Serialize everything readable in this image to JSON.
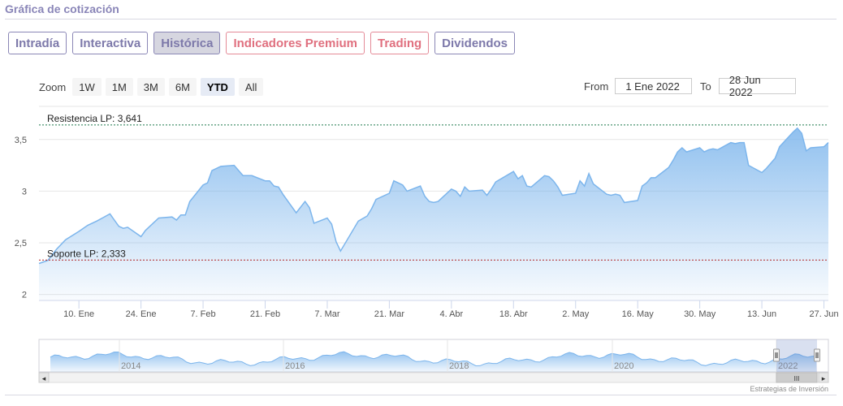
{
  "page": {
    "title": "Gráfica de cotización",
    "credit": "Estrategias de Inversión"
  },
  "tabs": [
    {
      "label": "Intradía",
      "style": "normal"
    },
    {
      "label": "Interactiva",
      "style": "normal"
    },
    {
      "label": "Histórica",
      "style": "active"
    },
    {
      "label": "Indicadores Premium",
      "style": "premium"
    },
    {
      "label": "Trading",
      "style": "premium"
    },
    {
      "label": "Dividendos",
      "style": "normal"
    }
  ],
  "zoom": {
    "label": "Zoom",
    "buttons": [
      "1W",
      "1M",
      "3M",
      "6M",
      "YTD",
      "All"
    ],
    "selected": "YTD"
  },
  "range": {
    "from_label": "From",
    "from_value": "1 Ene 2022",
    "to_label": "To",
    "to_value": "28 Jun 2022"
  },
  "chart_data": {
    "type": "area",
    "title": "",
    "ylim": [
      1.95,
      3.75
    ],
    "y_ticks": [
      "2",
      "2,5",
      "3",
      "3,5"
    ],
    "y_tick_values": [
      2,
      2.5,
      3,
      3.5
    ],
    "x_ticks": [
      "10. Ene",
      "24. Ene",
      "7. Feb",
      "21. Feb",
      "7. Mar",
      "21. Mar",
      "4. Abr",
      "18. Abr",
      "2. May",
      "16. May",
      "30. May",
      "13. Jun",
      "27. Jun"
    ],
    "x_tick_dates": [
      "2022-01-10",
      "2022-01-24",
      "2022-02-07",
      "2022-02-21",
      "2022-03-07",
      "2022-03-21",
      "2022-04-04",
      "2022-04-18",
      "2022-05-02",
      "2022-05-16",
      "2022-05-30",
      "2022-06-13",
      "2022-06-27"
    ],
    "x_range": [
      "2022-01-01",
      "2022-06-28"
    ],
    "series": [
      {
        "color": "#7cb5ec",
        "x": [
          "2022-01-01",
          "2022-01-03",
          "2022-01-05",
          "2022-01-07",
          "2022-01-10",
          "2022-01-12",
          "2022-01-14",
          "2022-01-17",
          "2022-01-18",
          "2022-01-19",
          "2022-01-20",
          "2022-01-21",
          "2022-01-24",
          "2022-01-25",
          "2022-01-26",
          "2022-01-28",
          "2022-01-31",
          "2022-02-01",
          "2022-02-02",
          "2022-02-03",
          "2022-02-04",
          "2022-02-07",
          "2022-02-08",
          "2022-02-09",
          "2022-02-11",
          "2022-02-14",
          "2022-02-16",
          "2022-02-18",
          "2022-02-21",
          "2022-02-22",
          "2022-02-23",
          "2022-02-24",
          "2022-02-25",
          "2022-02-28",
          "2022-03-02",
          "2022-03-03",
          "2022-03-04",
          "2022-03-07",
          "2022-03-08",
          "2022-03-09",
          "2022-03-10",
          "2022-03-14",
          "2022-03-16",
          "2022-03-17",
          "2022-03-18",
          "2022-03-21",
          "2022-03-22",
          "2022-03-23",
          "2022-03-24",
          "2022-03-25",
          "2022-03-28",
          "2022-03-29",
          "2022-03-30",
          "2022-03-31",
          "2022-04-01",
          "2022-04-04",
          "2022-04-05",
          "2022-04-06",
          "2022-04-07",
          "2022-04-08",
          "2022-04-11",
          "2022-04-12",
          "2022-04-13",
          "2022-04-14",
          "2022-04-18",
          "2022-04-19",
          "2022-04-20",
          "2022-04-21",
          "2022-04-22",
          "2022-04-25",
          "2022-04-26",
          "2022-04-27",
          "2022-04-28",
          "2022-04-29",
          "2022-05-02",
          "2022-05-03",
          "2022-05-04",
          "2022-05-05",
          "2022-05-06",
          "2022-05-09",
          "2022-05-10",
          "2022-05-11",
          "2022-05-12",
          "2022-05-13",
          "2022-05-16",
          "2022-05-17",
          "2022-05-18",
          "2022-05-19",
          "2022-05-20",
          "2022-05-23",
          "2022-05-24",
          "2022-05-25",
          "2022-05-26",
          "2022-05-27",
          "2022-05-30",
          "2022-05-31",
          "2022-06-01",
          "2022-06-02",
          "2022-06-03",
          "2022-06-06",
          "2022-06-07",
          "2022-06-08",
          "2022-06-09",
          "2022-06-10",
          "2022-06-13",
          "2022-06-14",
          "2022-06-15",
          "2022-06-16",
          "2022-06-17",
          "2022-06-20",
          "2022-06-21",
          "2022-06-22",
          "2022-06-23",
          "2022-06-24",
          "2022-06-27",
          "2022-06-28"
        ],
        "values": [
          2.3,
          2.33,
          2.44,
          2.53,
          2.61,
          2.67,
          2.71,
          2.78,
          2.72,
          2.66,
          2.64,
          2.65,
          2.56,
          2.62,
          2.66,
          2.74,
          2.75,
          2.72,
          2.77,
          2.77,
          2.9,
          3.06,
          3.08,
          3.2,
          3.24,
          3.25,
          3.15,
          3.15,
          3.1,
          3.1,
          3.05,
          3.04,
          2.97,
          2.79,
          2.9,
          2.84,
          2.69,
          2.74,
          2.68,
          2.51,
          2.42,
          2.71,
          2.76,
          2.83,
          2.92,
          2.98,
          3.1,
          3.08,
          3.06,
          3.0,
          3.05,
          2.95,
          2.9,
          2.89,
          2.9,
          3.02,
          3.0,
          2.95,
          3.04,
          3.0,
          3.01,
          2.96,
          3.02,
          3.09,
          3.19,
          3.12,
          3.15,
          3.05,
          3.04,
          3.15,
          3.14,
          3.1,
          3.04,
          2.96,
          2.98,
          3.1,
          3.05,
          3.17,
          3.07,
          2.97,
          2.96,
          2.97,
          2.96,
          2.89,
          2.91,
          3.05,
          3.08,
          3.13,
          3.13,
          3.23,
          3.3,
          3.38,
          3.42,
          3.38,
          3.42,
          3.38,
          3.4,
          3.41,
          3.4,
          3.47,
          3.46,
          3.47,
          3.47,
          3.25,
          3.18,
          3.22,
          3.27,
          3.32,
          3.43,
          3.57,
          3.61,
          3.56,
          3.39,
          3.42,
          3.43,
          3.47
        ]
      }
    ],
    "plot_lines": [
      {
        "label": "Resistencia LP: 3,641",
        "value": 3.641,
        "color": "#1f7a4d"
      },
      {
        "label": "Soporte LP: 2,333",
        "value": 2.333,
        "color": "#b22222"
      }
    ],
    "navigator": {
      "year_labels": [
        "2014",
        "2016",
        "2018",
        "2020",
        "2022"
      ],
      "handle_label": "III",
      "left_arrow": "◂",
      "right_arrow": "▸"
    }
  }
}
